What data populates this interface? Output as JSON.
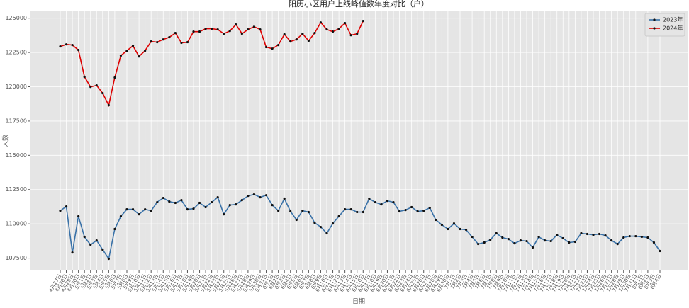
{
  "chart_data": {
    "type": "line",
    "title": "阳历小区用户上线峰值数年度对比（户）",
    "x_label": "日期",
    "y_label": "人数",
    "categories": [
      "4月27日",
      "4月28日",
      "4月29日",
      "4月30日",
      "5月1日",
      "5月2日",
      "5月3日",
      "5月4日",
      "5月5日",
      "5月6日",
      "5月7日",
      "5月8日",
      "5月9日",
      "5月10日",
      "5月11日",
      "5月12日",
      "5月13日",
      "5月14日",
      "5月15日",
      "5月16日",
      "5月17日",
      "5月18日",
      "5月19日",
      "5月20日",
      "5月21日",
      "5月22日",
      "5月23日",
      "5月24日",
      "5月25日",
      "5月26日",
      "5月27日",
      "5月28日",
      "5月29日",
      "5月30日",
      "5月31日",
      "6月1日",
      "6月2日",
      "6月3日",
      "6月4日",
      "6月5日",
      "6月6日",
      "6月7日",
      "6月8日",
      "6月9日",
      "6月10日",
      "6月11日",
      "6月12日",
      "6月13日",
      "6月14日",
      "6月15日",
      "6月16日",
      "6月17日",
      "6月18日",
      "6月19日",
      "6月20日",
      "6月21日",
      "6月22日",
      "6月23日",
      "6月24日",
      "6月25日",
      "6月26日",
      "6月27日",
      "6月28日",
      "6月29日",
      "6月30日",
      "7月1日",
      "7月2日",
      "7月3日",
      "7月4日",
      "7月5日",
      "7月6日",
      "7月7日",
      "7月8日",
      "7月9日",
      "7月10日",
      "7月11日",
      "7月12日",
      "7月13日",
      "7月14日",
      "7月15日",
      "7月16日",
      "7月17日",
      "7月18日",
      "7月19日",
      "7月20日",
      "7月21日",
      "7月22日",
      "7月23日",
      "7月24日",
      "7月25日",
      "7月26日",
      "7月27日",
      "7月28日",
      "7月29日",
      "7月30日",
      "7月31日",
      "8月1日",
      "8月2日",
      "8月3日",
      "8月4日"
    ],
    "series": [
      {
        "name": "2023年",
        "color": "#3a72a8",
        "values": [
          110960,
          111270,
          107910,
          110550,
          109050,
          108480,
          108790,
          108120,
          107450,
          109620,
          110550,
          111060,
          111060,
          110700,
          111060,
          110960,
          111580,
          111890,
          111630,
          111530,
          111730,
          111060,
          111110,
          111530,
          111220,
          111580,
          111940,
          110700,
          111370,
          111420,
          111730,
          112040,
          112150,
          111940,
          112090,
          111370,
          110960,
          111840,
          110910,
          110290,
          110960,
          110860,
          110080,
          109770,
          109310,
          110030,
          110550,
          111060,
          111060,
          110860,
          110860,
          111840,
          111580,
          111420,
          111680,
          111580,
          110910,
          111010,
          111220,
          110910,
          110960,
          111170,
          110290,
          109930,
          109620,
          110030,
          109620,
          109570,
          109050,
          108530,
          108640,
          108840,
          109310,
          109000,
          108890,
          108580,
          108790,
          108740,
          108280,
          109050,
          108790,
          108740,
          109200,
          108950,
          108640,
          108690,
          109310,
          109260,
          109200,
          109260,
          109150,
          108790,
          108530,
          109000,
          109100,
          109100,
          109050,
          109000,
          108640,
          108020
        ]
      },
      {
        "name": "2024年",
        "color": "#dd0000",
        "values": [
          122940,
          123090,
          123040,
          122680,
          120720,
          119990,
          120100,
          119530,
          118650,
          120670,
          122270,
          122630,
          122990,
          122210,
          122630,
          123300,
          123250,
          123450,
          123610,
          123920,
          123200,
          123250,
          124020,
          124020,
          124230,
          124230,
          124180,
          123870,
          124070,
          124540,
          123870,
          124180,
          124380,
          124180,
          122890,
          122780,
          123040,
          123820,
          123300,
          123450,
          123870,
          123350,
          123920,
          124690,
          124180,
          124020,
          124230,
          124640,
          123760,
          123870,
          124800,
          null,
          null,
          null,
          null,
          null,
          null,
          null,
          null,
          null,
          null,
          null,
          null,
          null,
          null,
          null,
          null,
          null,
          null,
          null,
          null,
          null,
          null,
          null,
          null,
          null,
          null,
          null,
          null,
          null,
          null,
          null,
          null,
          null,
          null,
          null,
          null,
          null,
          null,
          null,
          null,
          null,
          null,
          null,
          null,
          null,
          null,
          null,
          null,
          null
        ]
      }
    ],
    "ylim": [
      106600,
      125500
    ],
    "yticks": [
      107500,
      110000,
      112500,
      115000,
      117500,
      120000,
      122500,
      125000
    ],
    "grid": true,
    "legend": "upper right"
  }
}
